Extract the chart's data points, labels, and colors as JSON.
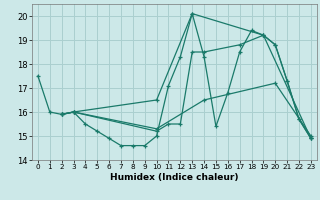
{
  "xlabel": "Humidex (Indice chaleur)",
  "bg_color": "#cce8e8",
  "grid_color": "#aacfcf",
  "line_color": "#1a7a6a",
  "xlim": [
    -0.5,
    23.5
  ],
  "ylim": [
    14,
    20.5
  ],
  "xticks": [
    0,
    1,
    2,
    3,
    4,
    5,
    6,
    7,
    8,
    9,
    10,
    11,
    12,
    13,
    14,
    15,
    16,
    17,
    18,
    19,
    20,
    21,
    22,
    23
  ],
  "yticks": [
    14,
    15,
    16,
    17,
    18,
    19,
    20
  ],
  "lines": [
    {
      "x": [
        0,
        1,
        2,
        3,
        4,
        5,
        6,
        7,
        8,
        9,
        10,
        11,
        12,
        13,
        14,
        15,
        16,
        17,
        18,
        19,
        20,
        21,
        22,
        23
      ],
      "y": [
        17.5,
        16.0,
        15.9,
        16.0,
        15.5,
        15.2,
        14.9,
        14.6,
        14.6,
        14.6,
        15.0,
        17.1,
        18.3,
        20.1,
        18.3,
        15.4,
        16.8,
        18.5,
        19.4,
        19.2,
        18.8,
        17.3,
        15.7,
        14.9
      ]
    },
    {
      "x": [
        2,
        3,
        10,
        14,
        20,
        23
      ],
      "y": [
        15.9,
        16.0,
        15.3,
        16.5,
        17.2,
        15.0
      ]
    },
    {
      "x": [
        2,
        3,
        10,
        11,
        12,
        13,
        14,
        17,
        19,
        20,
        21,
        22,
        23
      ],
      "y": [
        15.9,
        16.0,
        15.2,
        15.5,
        15.5,
        18.5,
        18.5,
        18.8,
        19.2,
        18.8,
        17.3,
        15.7,
        14.9
      ]
    },
    {
      "x": [
        2,
        3,
        10,
        13,
        19,
        23
      ],
      "y": [
        15.9,
        16.0,
        16.5,
        20.1,
        19.2,
        14.9
      ]
    }
  ]
}
